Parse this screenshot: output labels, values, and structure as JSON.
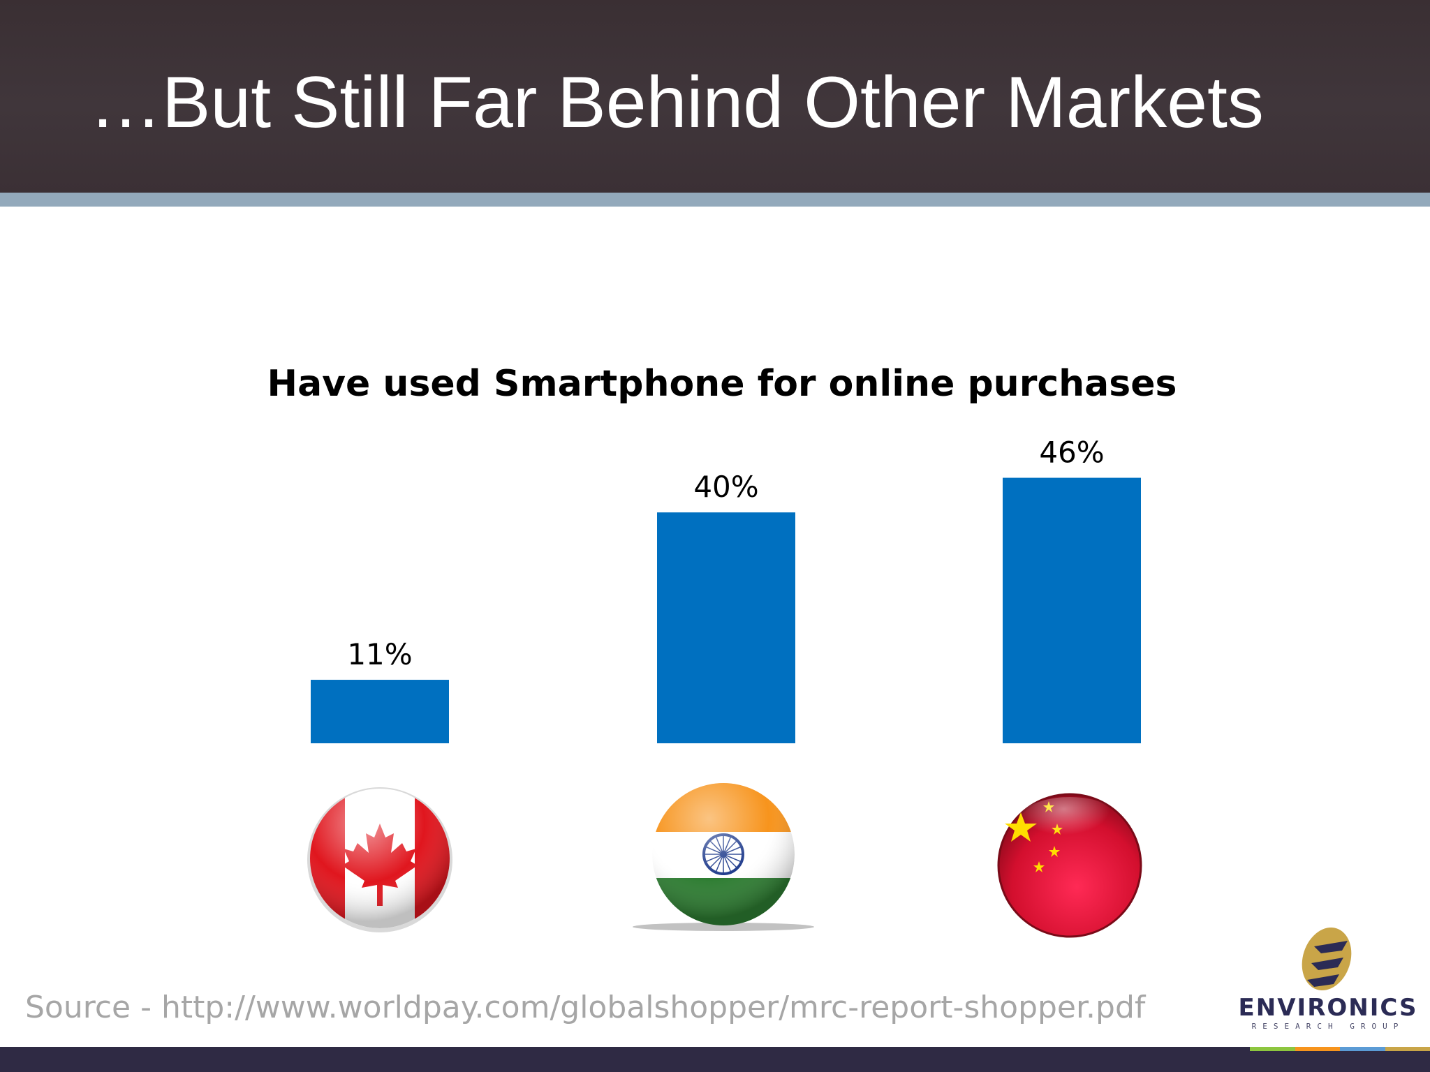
{
  "slide": {
    "title": "…But Still Far Behind Other Markets",
    "source": "Source - http://www.worldpay.com/globalshopper/mrc-report-shopper.pdf"
  },
  "logo": {
    "name": "ENVIRONICS",
    "tagline": "RESEARCH GROUP"
  },
  "colors": {
    "header_bg": "#3d3337",
    "stripe": "#93a9bb",
    "bar": "#0070c0",
    "source_text": "#a6a6a6"
  },
  "chart_data": {
    "type": "bar",
    "title": "Have used Smartphone for online purchases",
    "categories": [
      "Canada",
      "India",
      "China"
    ],
    "category_icons": [
      "canada-flag-icon",
      "india-flag-icon",
      "china-flag-icon"
    ],
    "values": [
      11,
      40,
      46
    ],
    "value_labels": [
      "11%",
      "40%",
      "46%"
    ],
    "unit": "%",
    "ylim": [
      0,
      50
    ],
    "grid": false,
    "legend": "none"
  }
}
